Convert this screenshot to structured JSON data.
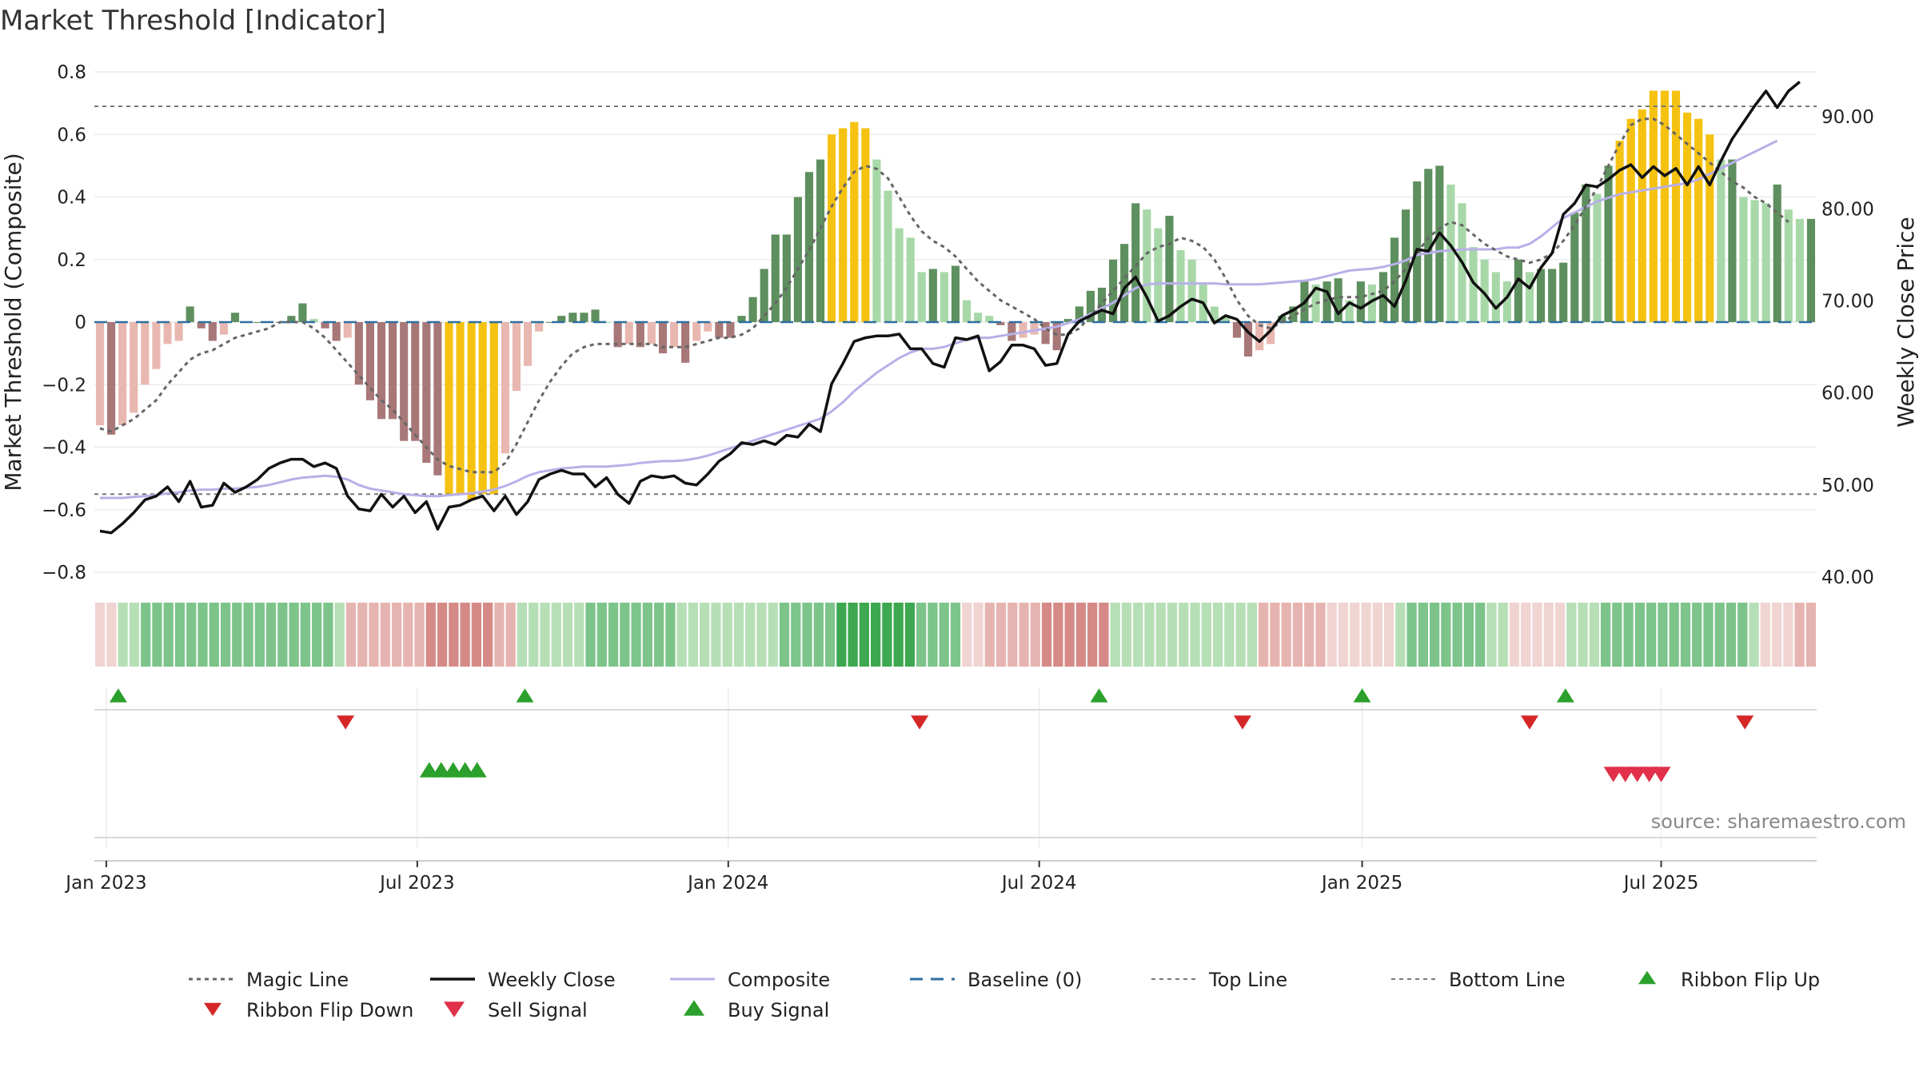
{
  "title": "Market Threshold [Indicator]",
  "source": "source: sharemaestro.com",
  "chart_data": {
    "type": "bar",
    "title": "Market Threshold [Indicator]",
    "ylabel_left": "Market Threshold (Composite)",
    "ylabel_right": "Weekly Close Price",
    "xlabel": "",
    "ylim_left": [
      -0.8,
      0.8
    ],
    "ylim_right": [
      40,
      100
    ],
    "yticks_left": [
      "0.8",
      "0.6",
      "0.4",
      "0.2",
      "0",
      "−0.2",
      "−0.4",
      "−0.6",
      "−0.8"
    ],
    "yticks_right": [
      "90.00",
      "80.00",
      "70.00",
      "60.00",
      "50.00",
      "40.00"
    ],
    "xticks": [
      "Jan 2023",
      "Jul 2023",
      "Jan 2024",
      "Jul 2024",
      "Jan 2025",
      "Jul 2025"
    ],
    "x_start": "2022-12-26",
    "x_end": "2025-09-29",
    "top_line": 0.69,
    "bottom_line": -0.55,
    "grid": true,
    "legend_position": "bottom",
    "colors": {
      "bar_pos_strong": "#5e8f5e",
      "bar_pos_light": "#a8d8a8",
      "bar_neg_strong": "#a87878",
      "bar_neg_light": "#e8b8b0",
      "bar_extreme": "#f5c211",
      "weekly_close": "#111111",
      "composite": "#b8b0e8",
      "magic_line": "#666666",
      "baseline": "#2e6fa0",
      "buy": "#2ca02c",
      "sell": "#d62728"
    },
    "series": [
      {
        "name": "Composite (bars)",
        "values": [
          -0.33,
          -0.36,
          -0.33,
          -0.29,
          -0.2,
          -0.15,
          -0.07,
          -0.06,
          0.05,
          -0.02,
          -0.06,
          -0.04,
          0.03,
          0.0,
          0.0,
          0.0,
          0.0,
          0.02,
          0.06,
          0.01,
          -0.02,
          -0.06,
          -0.05,
          -0.2,
          -0.25,
          -0.31,
          -0.31,
          -0.38,
          -0.38,
          -0.45,
          -0.49,
          -0.55,
          -0.55,
          -0.57,
          -0.55,
          -0.55,
          -0.42,
          -0.22,
          -0.14,
          -0.03,
          0.0,
          0.02,
          0.03,
          0.03,
          0.04,
          0.0,
          -0.08,
          -0.07,
          -0.08,
          -0.07,
          -0.1,
          -0.08,
          -0.13,
          -0.06,
          -0.03,
          -0.05,
          -0.05,
          0.02,
          0.08,
          0.17,
          0.28,
          0.28,
          0.4,
          0.48,
          0.52,
          0.6,
          0.62,
          0.64,
          0.62,
          0.52,
          0.42,
          0.3,
          0.27,
          0.16,
          0.17,
          0.16,
          0.18,
          0.07,
          0.03,
          0.02,
          -0.01,
          -0.06,
          -0.05,
          -0.04,
          -0.07,
          -0.09,
          0.01,
          0.05,
          0.1,
          0.11,
          0.2,
          0.25,
          0.38,
          0.36,
          0.3,
          0.34,
          0.23,
          0.2,
          0.12,
          0.05,
          0.02,
          -0.05,
          -0.11,
          -0.09,
          -0.07,
          0.02,
          0.05,
          0.13,
          0.12,
          0.13,
          0.14,
          0.07,
          0.13,
          0.12,
          0.16,
          0.27,
          0.36,
          0.45,
          0.49,
          0.5,
          0.44,
          0.38,
          0.24,
          0.2,
          0.16,
          0.13,
          0.2,
          0.16,
          0.17,
          0.17,
          0.19,
          0.35,
          0.44,
          0.41,
          0.5,
          0.58,
          0.65,
          0.68,
          0.74,
          0.74,
          0.74,
          0.67,
          0.65,
          0.6,
          0.52,
          0.52,
          0.4,
          0.39,
          0.38,
          0.44,
          0.36,
          0.33,
          0.33
        ]
      },
      {
        "name": "Magic Line",
        "values": [
          -0.34,
          -0.35,
          -0.33,
          -0.31,
          -0.28,
          -0.25,
          -0.2,
          -0.16,
          -0.12,
          -0.1,
          -0.09,
          -0.07,
          -0.05,
          -0.04,
          -0.03,
          -0.02,
          0.0,
          0.0,
          0.0,
          -0.02,
          -0.05,
          -0.09,
          -0.13,
          -0.17,
          -0.21,
          -0.25,
          -0.28,
          -0.32,
          -0.36,
          -0.4,
          -0.44,
          -0.46,
          -0.47,
          -0.48,
          -0.48,
          -0.48,
          -0.45,
          -0.39,
          -0.32,
          -0.25,
          -0.19,
          -0.14,
          -0.1,
          -0.08,
          -0.07,
          -0.07,
          -0.07,
          -0.07,
          -0.07,
          -0.07,
          -0.08,
          -0.08,
          -0.08,
          -0.07,
          -0.06,
          -0.05,
          -0.05,
          -0.04,
          -0.02,
          0.02,
          0.06,
          0.11,
          0.17,
          0.23,
          0.3,
          0.37,
          0.43,
          0.48,
          0.5,
          0.49,
          0.46,
          0.4,
          0.34,
          0.29,
          0.26,
          0.24,
          0.21,
          0.17,
          0.13,
          0.1,
          0.07,
          0.05,
          0.03,
          0.01,
          -0.02,
          -0.04,
          -0.04,
          -0.02,
          0.02,
          0.06,
          0.1,
          0.14,
          0.18,
          0.22,
          0.24,
          0.25,
          0.27,
          0.26,
          0.24,
          0.2,
          0.14,
          0.07,
          0.02,
          -0.01,
          -0.02,
          0.0,
          0.02,
          0.04,
          0.06,
          0.07,
          0.08,
          0.08,
          0.08,
          0.09,
          0.1,
          0.13,
          0.17,
          0.22,
          0.27,
          0.3,
          0.32,
          0.31,
          0.28,
          0.25,
          0.23,
          0.21,
          0.2,
          0.19,
          0.2,
          0.22,
          0.26,
          0.31,
          0.37,
          0.43,
          0.5,
          0.57,
          0.63,
          0.65,
          0.65,
          0.63,
          0.6,
          0.57,
          0.54,
          0.51,
          0.48,
          0.45,
          0.43,
          0.4,
          0.38,
          0.35,
          0.32
        ]
      },
      {
        "name": "Weekly Close",
        "values": [
          45.0,
          44.8,
          45.8,
          47.0,
          48.4,
          48.8,
          49.8,
          48.2,
          50.4,
          47.6,
          47.8,
          50.2,
          49.2,
          49.8,
          50.6,
          51.8,
          52.4,
          52.8,
          52.8,
          52.0,
          52.4,
          51.8,
          48.8,
          47.4,
          47.2,
          49.0,
          47.6,
          48.8,
          47.0,
          48.2,
          45.2,
          47.6,
          47.8,
          48.4,
          48.8,
          47.2,
          48.8,
          46.8,
          48.2,
          50.6,
          51.2,
          51.6,
          51.2,
          51.2,
          49.8,
          50.8,
          49.0,
          48.0,
          50.4,
          51.0,
          50.8,
          51.0,
          50.2,
          50.0,
          51.2,
          52.6,
          53.4,
          54.6,
          54.4,
          54.8,
          54.4,
          55.4,
          55.2,
          56.6,
          55.8,
          61.0,
          63.2,
          65.6,
          66.0,
          66.2,
          66.2,
          66.4,
          64.8,
          64.8,
          63.2,
          62.8,
          66.0,
          65.8,
          66.2,
          62.4,
          63.4,
          65.2,
          65.2,
          64.8,
          63.0,
          63.2,
          66.4,
          67.8,
          68.4,
          69.0,
          68.6,
          71.4,
          72.6,
          70.4,
          67.8,
          68.4,
          69.4,
          70.2,
          69.8,
          67.6,
          68.4,
          68.0,
          66.6,
          65.6,
          66.8,
          68.4,
          69.0,
          69.8,
          71.4,
          71.0,
          68.6,
          69.8,
          69.2,
          70.0,
          70.6,
          69.4,
          72.2,
          75.6,
          75.4,
          77.4,
          76.0,
          74.2,
          72.0,
          70.8,
          69.2,
          70.4,
          72.4,
          71.4,
          73.6,
          75.2,
          79.4,
          80.6,
          82.6,
          82.4,
          83.2,
          84.2,
          84.8,
          83.4,
          84.6,
          83.6,
          84.4,
          82.6,
          84.6,
          82.6,
          85.2,
          87.6,
          89.4,
          91.2,
          92.8,
          91.0,
          92.8,
          93.8
        ]
      },
      {
        "name": "Composite",
        "values": [
          48.6,
          48.6,
          48.6,
          48.7,
          48.8,
          48.9,
          49.1,
          49.2,
          49.4,
          49.5,
          49.5,
          49.6,
          49.6,
          49.7,
          49.8,
          50.0,
          50.3,
          50.6,
          50.8,
          50.9,
          51.0,
          50.9,
          50.6,
          50.0,
          49.6,
          49.4,
          49.2,
          49.0,
          48.9,
          48.8,
          48.8,
          48.9,
          49.0,
          49.1,
          49.3,
          49.5,
          49.9,
          50.4,
          51.0,
          51.4,
          51.6,
          51.8,
          51.9,
          52.0,
          52.0,
          52.0,
          52.1,
          52.2,
          52.4,
          52.5,
          52.6,
          52.6,
          52.7,
          52.9,
          53.2,
          53.6,
          54.0,
          54.4,
          54.8,
          55.2,
          55.6,
          56.0,
          56.4,
          56.8,
          57.2,
          58.0,
          59.0,
          60.2,
          61.2,
          62.2,
          63.0,
          63.8,
          64.4,
          64.8,
          64.8,
          65.0,
          65.4,
          65.8,
          66.0,
          66.0,
          66.2,
          66.4,
          66.6,
          66.8,
          67.0,
          67.2,
          67.6,
          68.0,
          68.6,
          69.2,
          69.8,
          70.6,
          71.4,
          71.8,
          71.9,
          71.9,
          71.9,
          71.9,
          71.9,
          71.9,
          71.8,
          71.8,
          71.8,
          71.8,
          71.9,
          72.0,
          72.1,
          72.2,
          72.4,
          72.7,
          73.0,
          73.3,
          73.4,
          73.5,
          73.7,
          74.0,
          74.4,
          75.0,
          75.2,
          75.4,
          75.5,
          75.6,
          75.6,
          75.6,
          75.6,
          75.8,
          75.8,
          76.2,
          77.0,
          78.0,
          79.0,
          79.6,
          80.2,
          80.8,
          81.2,
          81.6,
          81.8,
          82.0,
          82.2,
          82.4,
          82.6,
          82.8,
          83.2,
          83.8,
          84.4,
          85.0,
          85.6,
          86.2,
          86.8,
          87.4
        ]
      }
    ],
    "ribbon_levels": [
      -1,
      -1,
      1,
      1,
      2,
      2,
      2,
      2,
      2,
      2,
      2,
      2,
      2,
      2,
      2,
      2,
      2,
      2,
      2,
      2,
      2,
      1,
      -2,
      -2,
      -2,
      -2,
      -2,
      -2,
      -2,
      -3,
      -3,
      -3,
      -3,
      -3,
      -3,
      -2,
      -2,
      1,
      1,
      1,
      1,
      1,
      1,
      2,
      2,
      2,
      2,
      2,
      2,
      2,
      2,
      1,
      1,
      1,
      1,
      1,
      1,
      1,
      1,
      1,
      2,
      2,
      2,
      2,
      2,
      3,
      3,
      3,
      3,
      3,
      3,
      3,
      2,
      2,
      2,
      2,
      -1,
      -1,
      -2,
      -2,
      -2,
      -2,
      -2,
      -3,
      -3,
      -3,
      -3,
      -3,
      -3,
      1,
      1,
      1,
      1,
      1,
      1,
      1,
      1,
      1,
      1,
      1,
      1,
      1,
      -2,
      -2,
      -2,
      -2,
      -2,
      -2,
      -1,
      -1,
      -1,
      -1,
      -1,
      -1,
      1,
      2,
      2,
      2,
      2,
      2,
      2,
      2,
      1,
      1,
      -1,
      -1,
      -1,
      -1,
      -1,
      1,
      1,
      1,
      2,
      2,
      2,
      2,
      2,
      2,
      2,
      2,
      2,
      2,
      2,
      2,
      2,
      1,
      -1,
      -1,
      -1,
      -2,
      -2
    ],
    "ribbon_flip_up": [
      "2023-01-09",
      "2023-09-04",
      "2024-08-05",
      "2025-01-06",
      "2025-05-05"
    ],
    "ribbon_flip_down": [
      "2023-05-22",
      "2024-04-22",
      "2024-10-28",
      "2025-04-14",
      "2025-08-18"
    ],
    "buy_signals": [
      "2023-07-10",
      "2023-07-17",
      "2023-07-24",
      "2023-07-31",
      "2023-08-07"
    ],
    "sell_signals": [
      "2025-06-02",
      "2025-06-09",
      "2025-06-16",
      "2025-06-23",
      "2025-06-30"
    ],
    "legend": [
      "Magic Line",
      "Weekly Close",
      "Composite",
      "Baseline (0)",
      "Top Line",
      "Bottom Line",
      "Ribbon Flip Up",
      "Ribbon Flip Down",
      "Sell Signal",
      "Buy Signal"
    ]
  }
}
